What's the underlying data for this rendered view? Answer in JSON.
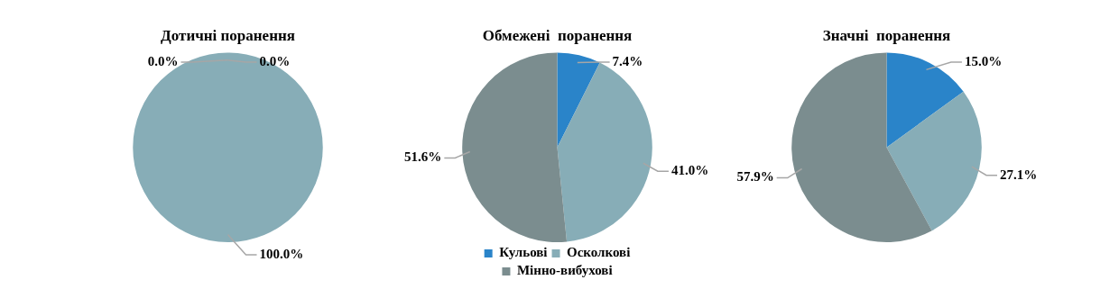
{
  "chart_data": [
    {
      "type": "pie",
      "title": "Дотичні поранення",
      "categories": [
        null,
        null,
        null
      ],
      "values": [
        0,
        100,
        0
      ],
      "colors": [
        "#2a84c9",
        "#87adb7",
        "#7b8d8f"
      ],
      "value_labels": [
        "0.0%",
        "100.0%",
        "0.0%"
      ]
    },
    {
      "type": "pie",
      "title": "Обмежені  поранення",
      "categories": [
        "Кульові",
        "Осколкові",
        "Мінно-вибухові"
      ],
      "values": [
        7.4,
        41.0,
        51.6
      ],
      "colors": [
        "#2a84c9",
        "#87adb7",
        "#7b8d8f"
      ],
      "value_labels": [
        "7.4%",
        "41.0%",
        "51.6%"
      ],
      "legend": "bottom"
    },
    {
      "type": "pie",
      "title": "Значні  поранення",
      "categories": [
        null,
        null,
        null
      ],
      "values": [
        15.0,
        27.1,
        57.9
      ],
      "colors": [
        "#2a84c9",
        "#87adb7",
        "#7b8d8f"
      ],
      "value_labels": [
        "15.0%",
        "27.1%",
        "57.9%"
      ]
    }
  ]
}
